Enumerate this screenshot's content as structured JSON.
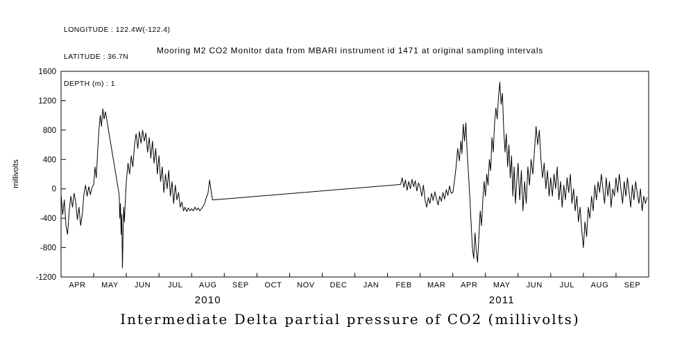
{
  "meta": {
    "longitude": "LONGITUDE : 122.4W(-122.4)",
    "latitude": "LATITUDE : 36.7N",
    "depth": "DEPTH (m) : 1"
  },
  "chart_data": {
    "type": "line",
    "title": "Mooring M2 CO2 Monitor data from MBARI instrument id 1471 at original sampling intervals",
    "bottom_title": "Intermediate Delta partial pressure of CO2 (millivolts)",
    "ylabel": "millivolts",
    "xlabel": "",
    "ylim": [
      -1200,
      1600
    ],
    "ytick_values": [
      -1200,
      -800,
      -400,
      0,
      400,
      800,
      1200,
      1600
    ],
    "xlim": [
      0,
      18
    ],
    "x_unit": "months, 0 = start of APR 2010",
    "xtick_labels": [
      "APR",
      "MAY",
      "JUN",
      "JUL",
      "AUG",
      "SEP",
      "OCT",
      "NOV",
      "DEC",
      "JAN",
      "FEB",
      "MAR",
      "APR",
      "MAY",
      "JUN",
      "JUL",
      "AUG",
      "SEP"
    ],
    "year_labels": [
      {
        "label": "2010",
        "x": 4.5
      },
      {
        "label": "2011",
        "x": 13.5
      }
    ],
    "grid": false,
    "legend": false,
    "background": "#ffffff",
    "axis_color": "#000000",
    "line_color": "#000000",
    "series": [
      {
        "name": "Intermediate Delta partial pressure of CO2 (millivolts)",
        "points": [
          [
            0.0,
            -80
          ],
          [
            0.05,
            -350
          ],
          [
            0.1,
            -150
          ],
          [
            0.15,
            -500
          ],
          [
            0.2,
            -620
          ],
          [
            0.25,
            -300
          ],
          [
            0.3,
            -100
          ],
          [
            0.35,
            -250
          ],
          [
            0.4,
            -60
          ],
          [
            0.45,
            -180
          ],
          [
            0.5,
            -420
          ],
          [
            0.55,
            -250
          ],
          [
            0.6,
            -500
          ],
          [
            0.65,
            -350
          ],
          [
            0.7,
            -80
          ],
          [
            0.75,
            50
          ],
          [
            0.8,
            -100
          ],
          [
            0.85,
            30
          ],
          [
            0.9,
            -80
          ],
          [
            0.95,
            20
          ],
          [
            1.0,
            60
          ],
          [
            1.04,
            300
          ],
          [
            1.08,
            150
          ],
          [
            1.12,
            500
          ],
          [
            1.16,
            800
          ],
          [
            1.2,
            1000
          ],
          [
            1.24,
            850
          ],
          [
            1.28,
            1090
          ],
          [
            1.32,
            950
          ],
          [
            1.36,
            1050
          ],
          [
            1.78,
            -80
          ],
          [
            1.8,
            -400
          ],
          [
            1.82,
            -200
          ],
          [
            1.84,
            -620
          ],
          [
            1.86,
            -350
          ],
          [
            1.88,
            -1080
          ],
          [
            1.9,
            -600
          ],
          [
            1.92,
            -250
          ],
          [
            1.94,
            -450
          ],
          [
            1.97,
            -150
          ],
          [
            2.0,
            100
          ],
          [
            2.05,
            350
          ],
          [
            2.1,
            200
          ],
          [
            2.15,
            450
          ],
          [
            2.2,
            300
          ],
          [
            2.25,
            600
          ],
          [
            2.3,
            750
          ],
          [
            2.35,
            550
          ],
          [
            2.4,
            780
          ],
          [
            2.45,
            620
          ],
          [
            2.5,
            800
          ],
          [
            2.55,
            650
          ],
          [
            2.6,
            760
          ],
          [
            2.65,
            500
          ],
          [
            2.7,
            700
          ],
          [
            2.75,
            420
          ],
          [
            2.8,
            650
          ],
          [
            2.85,
            350
          ],
          [
            2.9,
            550
          ],
          [
            2.95,
            200
          ],
          [
            3.0,
            450
          ],
          [
            3.05,
            100
          ],
          [
            3.1,
            300
          ],
          [
            3.15,
            -50
          ],
          [
            3.2,
            200
          ],
          [
            3.25,
            0
          ],
          [
            3.3,
            250
          ],
          [
            3.35,
            -100
          ],
          [
            3.4,
            100
          ],
          [
            3.45,
            -200
          ],
          [
            3.5,
            50
          ],
          [
            3.55,
            -150
          ],
          [
            3.6,
            -50
          ],
          [
            3.65,
            -250
          ],
          [
            3.7,
            -180
          ],
          [
            3.75,
            -300
          ],
          [
            3.8,
            -250
          ],
          [
            3.85,
            -310
          ],
          [
            3.9,
            -260
          ],
          [
            3.95,
            -300
          ],
          [
            4.0,
            -270
          ],
          [
            4.05,
            -300
          ],
          [
            4.1,
            -250
          ],
          [
            4.15,
            -290
          ],
          [
            4.2,
            -260
          ],
          [
            4.25,
            -300
          ],
          [
            4.3,
            -270
          ],
          [
            4.35,
            -240
          ],
          [
            4.4,
            -200
          ],
          [
            4.45,
            -120
          ],
          [
            4.5,
            -60
          ],
          [
            4.55,
            120
          ],
          [
            4.6,
            -40
          ],
          [
            4.64,
            -150
          ],
          [
            4.68,
            -150
          ],
          [
            10.4,
            60
          ],
          [
            10.45,
            150
          ],
          [
            10.5,
            20
          ],
          [
            10.55,
            120
          ],
          [
            10.6,
            -20
          ],
          [
            10.65,
            100
          ],
          [
            10.7,
            0
          ],
          [
            10.75,
            130
          ],
          [
            10.8,
            30
          ],
          [
            10.85,
            110
          ],
          [
            10.9,
            -30
          ],
          [
            10.95,
            80
          ],
          [
            11.0,
            20
          ],
          [
            11.05,
            -100
          ],
          [
            11.1,
            50
          ],
          [
            11.15,
            -150
          ],
          [
            11.2,
            -250
          ],
          [
            11.25,
            -120
          ],
          [
            11.3,
            -200
          ],
          [
            11.35,
            -60
          ],
          [
            11.4,
            -160
          ],
          [
            11.45,
            -40
          ],
          [
            11.5,
            -130
          ],
          [
            11.55,
            -220
          ],
          [
            11.6,
            -100
          ],
          [
            11.65,
            -170
          ],
          [
            11.7,
            -50
          ],
          [
            11.75,
            -140
          ],
          [
            11.8,
            -10
          ],
          [
            11.85,
            -90
          ],
          [
            11.9,
            40
          ],
          [
            11.95,
            -60
          ],
          [
            12.0,
            -50
          ],
          [
            12.05,
            100
          ],
          [
            12.1,
            300
          ],
          [
            12.15,
            550
          ],
          [
            12.2,
            380
          ],
          [
            12.25,
            650
          ],
          [
            12.28,
            480
          ],
          [
            12.32,
            880
          ],
          [
            12.36,
            650
          ],
          [
            12.4,
            900
          ],
          [
            12.44,
            500
          ],
          [
            12.48,
            200
          ],
          [
            12.52,
            -100
          ],
          [
            12.56,
            -450
          ],
          [
            12.6,
            -800
          ],
          [
            12.64,
            -950
          ],
          [
            12.68,
            -600
          ],
          [
            12.72,
            -850
          ],
          [
            12.76,
            -1000
          ],
          [
            12.8,
            -650
          ],
          [
            12.84,
            -300
          ],
          [
            12.88,
            -500
          ],
          [
            12.92,
            -150
          ],
          [
            12.96,
            100
          ],
          [
            13.0,
            -100
          ],
          [
            13.04,
            200
          ],
          [
            13.08,
            50
          ],
          [
            13.12,
            400
          ],
          [
            13.16,
            250
          ],
          [
            13.2,
            700
          ],
          [
            13.24,
            500
          ],
          [
            13.28,
            900
          ],
          [
            13.32,
            1100
          ],
          [
            13.36,
            950
          ],
          [
            13.4,
            1250
          ],
          [
            13.44,
            1450
          ],
          [
            13.48,
            1150
          ],
          [
            13.52,
            1300
          ],
          [
            13.56,
            800
          ],
          [
            13.6,
            500
          ],
          [
            13.64,
            750
          ],
          [
            13.68,
            300
          ],
          [
            13.72,
            600
          ],
          [
            13.76,
            150
          ],
          [
            13.8,
            450
          ],
          [
            13.84,
            -100
          ],
          [
            13.88,
            300
          ],
          [
            13.92,
            -200
          ],
          [
            13.96,
            100
          ],
          [
            14.0,
            350
          ],
          [
            14.05,
            -150
          ],
          [
            14.1,
            250
          ],
          [
            14.15,
            -300
          ],
          [
            14.2,
            100
          ],
          [
            14.25,
            -200
          ],
          [
            14.3,
            300
          ],
          [
            14.35,
            50
          ],
          [
            14.4,
            400
          ],
          [
            14.45,
            200
          ],
          [
            14.5,
            500
          ],
          [
            14.55,
            850
          ],
          [
            14.6,
            600
          ],
          [
            14.65,
            800
          ],
          [
            14.7,
            400
          ],
          [
            14.75,
            150
          ],
          [
            14.8,
            350
          ],
          [
            14.85,
            0
          ],
          [
            14.9,
            250
          ],
          [
            14.95,
            -100
          ],
          [
            15.0,
            150
          ],
          [
            15.05,
            -100
          ],
          [
            15.1,
            200
          ],
          [
            15.15,
            0
          ],
          [
            15.2,
            300
          ],
          [
            15.25,
            -150
          ],
          [
            15.3,
            100
          ],
          [
            15.35,
            -250
          ],
          [
            15.4,
            50
          ],
          [
            15.45,
            -150
          ],
          [
            15.5,
            150
          ],
          [
            15.55,
            -50
          ],
          [
            15.6,
            200
          ],
          [
            15.65,
            -200
          ],
          [
            15.7,
            0
          ],
          [
            15.75,
            -300
          ],
          [
            15.8,
            -100
          ],
          [
            15.85,
            -450
          ],
          [
            15.9,
            -250
          ],
          [
            15.95,
            -550
          ],
          [
            16.0,
            -800
          ],
          [
            16.05,
            -450
          ],
          [
            16.1,
            -650
          ],
          [
            16.15,
            -250
          ],
          [
            16.2,
            -400
          ],
          [
            16.25,
            -100
          ],
          [
            16.3,
            -300
          ],
          [
            16.35,
            50
          ],
          [
            16.4,
            -150
          ],
          [
            16.45,
            100
          ],
          [
            16.5,
            -50
          ],
          [
            16.55,
            200
          ],
          [
            16.6,
            0
          ],
          [
            16.65,
            -200
          ],
          [
            16.7,
            150
          ],
          [
            16.75,
            -100
          ],
          [
            16.8,
            100
          ],
          [
            16.85,
            -250
          ],
          [
            16.9,
            0
          ],
          [
            16.95,
            -100
          ],
          [
            17.0,
            150
          ],
          [
            17.05,
            -50
          ],
          [
            17.1,
            200
          ],
          [
            17.15,
            0
          ],
          [
            17.2,
            -200
          ],
          [
            17.25,
            100
          ],
          [
            17.3,
            -100
          ],
          [
            17.35,
            150
          ],
          [
            17.4,
            -50
          ],
          [
            17.45,
            -250
          ],
          [
            17.5,
            50
          ],
          [
            17.55,
            -150
          ],
          [
            17.6,
            100
          ],
          [
            17.65,
            -50
          ],
          [
            17.7,
            -200
          ],
          [
            17.75,
            0
          ],
          [
            17.8,
            -300
          ],
          [
            17.85,
            -100
          ],
          [
            17.9,
            -200
          ],
          [
            17.95,
            -120
          ]
        ]
      }
    ]
  }
}
